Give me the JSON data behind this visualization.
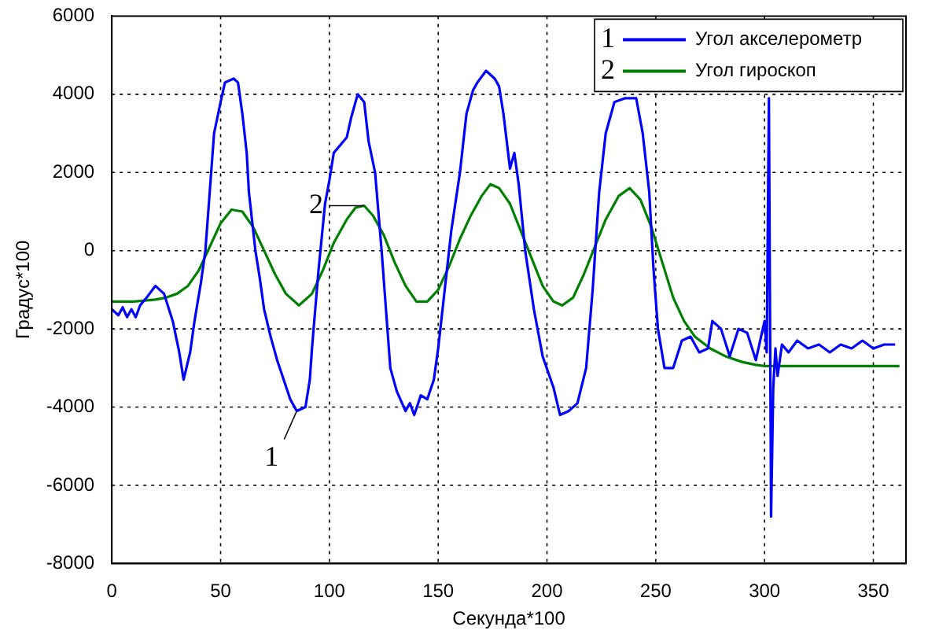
{
  "chart_data": {
    "type": "line",
    "xlabel": "Секунда*100",
    "ylabel": "Градус*100",
    "xlim": [
      0,
      365
    ],
    "xticks": [
      0,
      50,
      100,
      150,
      200,
      250,
      300,
      350
    ],
    "ylim": [
      -8000,
      6000
    ],
    "yticks": [
      -8000,
      -6000,
      -4000,
      -2000,
      0,
      2000,
      4000,
      6000
    ],
    "grid": true,
    "legend": "top right",
    "line_style": "solid",
    "marker": "none",
    "annotations": [
      {
        "text": "1",
        "x": 85,
        "y": -4100
      },
      {
        "text": "2",
        "x": 116,
        "y": 1150
      }
    ],
    "series": [
      {
        "name": "Угол акселерометр",
        "color": "#0000ff",
        "x": [
          0,
          3,
          5,
          7,
          9,
          11,
          13,
          16,
          20,
          24,
          28,
          31,
          33,
          36,
          38,
          41,
          43,
          45,
          47,
          50,
          52,
          56,
          58,
          60,
          62,
          63,
          66,
          68,
          70,
          73,
          76,
          79,
          82,
          85,
          89,
          91,
          92,
          95,
          98,
          100,
          102,
          105,
          108,
          110,
          113,
          116,
          118,
          121,
          124,
          126,
          128,
          131,
          135,
          137,
          139,
          142,
          145,
          148,
          150,
          153,
          156,
          160,
          163,
          166,
          168,
          172,
          176,
          178,
          180,
          183,
          185,
          187,
          190,
          194,
          198,
          203,
          206,
          210,
          214,
          218,
          221,
          224,
          227,
          231,
          236,
          241,
          244,
          247,
          249,
          251,
          254,
          258,
          262,
          266,
          270,
          274,
          276,
          280,
          284,
          288,
          292,
          296,
          300,
          301,
          302,
          303,
          304,
          305,
          306,
          308,
          311,
          315,
          320,
          325,
          330,
          335,
          340,
          345,
          350,
          355,
          360
        ],
        "values": [
          -1500,
          -1650,
          -1450,
          -1700,
          -1500,
          -1700,
          -1400,
          -1200,
          -900,
          -1100,
          -1800,
          -2600,
          -3300,
          -2600,
          -1800,
          -800,
          0,
          1500,
          3000,
          3800,
          4300,
          4400,
          4300,
          3500,
          2500,
          1500,
          0,
          -700,
          -1500,
          -2200,
          -2800,
          -3300,
          -3800,
          -4100,
          -4000,
          -3300,
          -2500,
          -500,
          1200,
          1800,
          2500,
          2700,
          2900,
          3400,
          4000,
          3800,
          2800,
          2000,
          0,
          -1500,
          -3000,
          -3600,
          -4100,
          -3900,
          -4200,
          -3700,
          -3800,
          -3300,
          -2500,
          -1000,
          500,
          2000,
          3500,
          4100,
          4300,
          4600,
          4400,
          4200,
          3500,
          2100,
          2500,
          1700,
          0,
          -1500,
          -2700,
          -3500,
          -4200,
          -4100,
          -3900,
          -3000,
          -1000,
          1500,
          3000,
          3800,
          3900,
          3900,
          3000,
          1500,
          -500,
          -2000,
          -3000,
          -3000,
          -2300,
          -2200,
          -2600,
          -2500,
          -1800,
          -2000,
          -2700,
          -2000,
          -2100,
          -2800,
          -1800,
          -2600,
          3900,
          -6800,
          -3500,
          -2500,
          -3200,
          -2400,
          -2600,
          -2300,
          -2500,
          -2400,
          -2600,
          -2400,
          -2500,
          -2300,
          -2500,
          -2400,
          -2400
        ]
      },
      {
        "name": "Угол гироскоп",
        "color": "#008000",
        "x": [
          0,
          10,
          20,
          25,
          30,
          35,
          40,
          45,
          50,
          55,
          60,
          65,
          70,
          75,
          80,
          86,
          92,
          97,
          102,
          108,
          112,
          116,
          120,
          125,
          130,
          135,
          140,
          145,
          150,
          155,
          160,
          165,
          170,
          174,
          178,
          183,
          188,
          193,
          198,
          203,
          207,
          212,
          217,
          222,
          227,
          233,
          238,
          243,
          248,
          253,
          258,
          263,
          268,
          275,
          282,
          290,
          296,
          300,
          310,
          320,
          330,
          340,
          350,
          362
        ],
        "values": [
          -1300,
          -1300,
          -1250,
          -1200,
          -1100,
          -900,
          -500,
          100,
          700,
          1050,
          1000,
          600,
          0,
          -600,
          -1100,
          -1400,
          -1100,
          -500,
          200,
          800,
          1100,
          1150,
          900,
          400,
          -300,
          -900,
          -1300,
          -1300,
          -1000,
          -400,
          300,
          900,
          1400,
          1700,
          1600,
          1200,
          500,
          -200,
          -900,
          -1300,
          -1400,
          -1200,
          -600,
          100,
          800,
          1400,
          1600,
          1300,
          600,
          -300,
          -1200,
          -1800,
          -2200,
          -2500,
          -2700,
          -2850,
          -2920,
          -2950,
          -2950,
          -2950,
          -2950,
          -2950,
          -2950,
          -2950
        ]
      }
    ]
  }
}
